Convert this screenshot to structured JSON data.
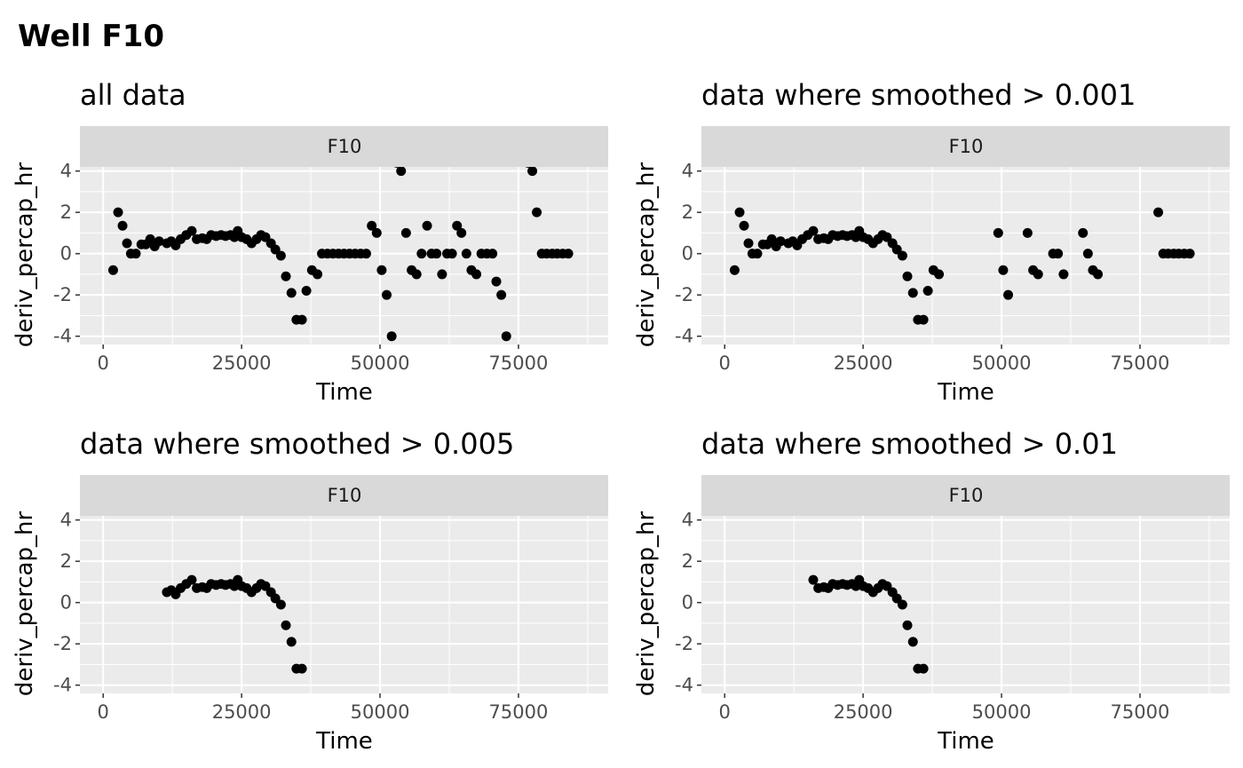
{
  "figure": {
    "title": "Well F10"
  },
  "colors": {
    "panel_bg": "#ebebeb",
    "strip_bg": "#d9d9d9",
    "grid": "#ffffff",
    "point": "#000000",
    "tick": "#333333"
  },
  "chart_data": [
    {
      "type": "scatter",
      "title": "all data",
      "facet": "F10",
      "xlabel": "Time",
      "ylabel": "deriv_percap_hr",
      "xlim": [
        -4200,
        91200
      ],
      "ylim": [
        -4.4,
        4.2
      ],
      "xticks": [
        0,
        25000,
        50000,
        75000
      ],
      "yticks": [
        -4,
        -2,
        0,
        2,
        4
      ],
      "points": [
        [
          1800,
          -0.8
        ],
        [
          2700,
          2
        ],
        [
          3500,
          1.35
        ],
        [
          4300,
          0.5
        ],
        [
          5000,
          0
        ],
        [
          5900,
          0
        ],
        [
          6900,
          0.45
        ],
        [
          7700,
          0.45
        ],
        [
          8500,
          0.7
        ],
        [
          9300,
          0.35
        ],
        [
          10100,
          0.6
        ],
        [
          11500,
          0.5
        ],
        [
          12300,
          0.6
        ],
        [
          13100,
          0.4
        ],
        [
          14000,
          0.7
        ],
        [
          15000,
          0.9
        ],
        [
          16000,
          1.1
        ],
        [
          16900,
          0.7
        ],
        [
          17900,
          0.75
        ],
        [
          18700,
          0.7
        ],
        [
          19500,
          0.9
        ],
        [
          20400,
          0.85
        ],
        [
          21300,
          0.9
        ],
        [
          22100,
          0.85
        ],
        [
          23000,
          0.9
        ],
        [
          23700,
          0.8
        ],
        [
          24300,
          1.1
        ],
        [
          25000,
          0.8
        ],
        [
          25900,
          0.7
        ],
        [
          26800,
          0.5
        ],
        [
          27700,
          0.7
        ],
        [
          28500,
          0.9
        ],
        [
          29300,
          0.8
        ],
        [
          30300,
          0.5
        ],
        [
          31100,
          0.2
        ],
        [
          32100,
          -0.1
        ],
        [
          33000,
          -1.1
        ],
        [
          34000,
          -1.9
        ],
        [
          34900,
          -3.2
        ],
        [
          35900,
          -3.2
        ],
        [
          36700,
          -1.8
        ],
        [
          37700,
          -0.8
        ],
        [
          38700,
          -1
        ],
        [
          39500,
          0
        ],
        [
          40500,
          0
        ],
        [
          41500,
          0
        ],
        [
          42500,
          0
        ],
        [
          43500,
          0
        ],
        [
          44500,
          0
        ],
        [
          45500,
          0
        ],
        [
          46500,
          0
        ],
        [
          47500,
          0
        ],
        [
          48500,
          1.35
        ],
        [
          49400,
          1
        ],
        [
          50300,
          -0.8
        ],
        [
          51200,
          -2
        ],
        [
          52100,
          -4
        ],
        [
          53000,
          4.4
        ],
        [
          53800,
          4
        ],
        [
          54700,
          1
        ],
        [
          55700,
          -0.8
        ],
        [
          56600,
          -1
        ],
        [
          57500,
          0
        ],
        [
          58500,
          1.35
        ],
        [
          59300,
          0
        ],
        [
          60200,
          0
        ],
        [
          61200,
          -1
        ],
        [
          62100,
          0
        ],
        [
          63000,
          0
        ],
        [
          63900,
          1.35
        ],
        [
          64700,
          1
        ],
        [
          65600,
          0
        ],
        [
          66500,
          -0.8
        ],
        [
          67400,
          -1
        ],
        [
          68300,
          0
        ],
        [
          69300,
          0
        ],
        [
          70300,
          0
        ],
        [
          71000,
          -1.35
        ],
        [
          71900,
          -2
        ],
        [
          72800,
          -4
        ],
        [
          76700,
          4.4
        ],
        [
          77500,
          4
        ],
        [
          78300,
          2
        ],
        [
          79200,
          0
        ],
        [
          80100,
          0
        ],
        [
          81100,
          0
        ],
        [
          82000,
          0
        ],
        [
          83000,
          0
        ],
        [
          84000,
          0
        ]
      ]
    },
    {
      "type": "scatter",
      "title": "data where smoothed > 0.001",
      "facet": "F10",
      "xlabel": "Time",
      "ylabel": "deriv_percap_hr",
      "xlim": [
        -4200,
        91200
      ],
      "ylim": [
        -4.4,
        4.2
      ],
      "xticks": [
        0,
        25000,
        50000,
        75000
      ],
      "yticks": [
        -4,
        -2,
        0,
        2,
        4
      ],
      "points": [
        [
          1800,
          -0.8
        ],
        [
          2700,
          2
        ],
        [
          3500,
          1.35
        ],
        [
          4300,
          0.5
        ],
        [
          5000,
          0
        ],
        [
          5900,
          0
        ],
        [
          6900,
          0.45
        ],
        [
          7700,
          0.45
        ],
        [
          8500,
          0.7
        ],
        [
          9300,
          0.35
        ],
        [
          10100,
          0.6
        ],
        [
          11500,
          0.5
        ],
        [
          12300,
          0.6
        ],
        [
          13100,
          0.4
        ],
        [
          14000,
          0.7
        ],
        [
          15000,
          0.9
        ],
        [
          16000,
          1.1
        ],
        [
          16900,
          0.7
        ],
        [
          17900,
          0.75
        ],
        [
          18700,
          0.7
        ],
        [
          19500,
          0.9
        ],
        [
          20400,
          0.85
        ],
        [
          21300,
          0.9
        ],
        [
          22100,
          0.85
        ],
        [
          23000,
          0.9
        ],
        [
          23700,
          0.8
        ],
        [
          24300,
          1.1
        ],
        [
          25000,
          0.8
        ],
        [
          25900,
          0.7
        ],
        [
          26800,
          0.5
        ],
        [
          27700,
          0.7
        ],
        [
          28500,
          0.9
        ],
        [
          29300,
          0.8
        ],
        [
          30300,
          0.5
        ],
        [
          31100,
          0.2
        ],
        [
          32100,
          -0.1
        ],
        [
          33000,
          -1.1
        ],
        [
          34000,
          -1.9
        ],
        [
          34900,
          -3.2
        ],
        [
          35900,
          -3.2
        ],
        [
          36700,
          -1.8
        ],
        [
          37700,
          -0.8
        ],
        [
          38700,
          -1
        ],
        [
          49400,
          1
        ],
        [
          50300,
          -0.8
        ],
        [
          51200,
          -2
        ],
        [
          54700,
          1
        ],
        [
          55700,
          -0.8
        ],
        [
          56600,
          -1
        ],
        [
          59300,
          0
        ],
        [
          60200,
          0
        ],
        [
          61200,
          -1
        ],
        [
          64700,
          1
        ],
        [
          65600,
          0
        ],
        [
          66500,
          -0.8
        ],
        [
          67400,
          -1
        ],
        [
          78300,
          2
        ],
        [
          79200,
          0
        ],
        [
          80100,
          0
        ],
        [
          81100,
          0
        ],
        [
          82000,
          0
        ],
        [
          83000,
          0
        ],
        [
          84000,
          0
        ]
      ]
    },
    {
      "type": "scatter",
      "title": "data where smoothed > 0.005",
      "facet": "F10",
      "xlabel": "Time",
      "ylabel": "deriv_percap_hr",
      "xlim": [
        -4200,
        91200
      ],
      "ylim": [
        -4.4,
        4.2
      ],
      "xticks": [
        0,
        25000,
        50000,
        75000
      ],
      "yticks": [
        -4,
        -2,
        0,
        2,
        4
      ],
      "points": [
        [
          11500,
          0.5
        ],
        [
          12300,
          0.6
        ],
        [
          13100,
          0.4
        ],
        [
          14000,
          0.7
        ],
        [
          15000,
          0.9
        ],
        [
          16000,
          1.1
        ],
        [
          16900,
          0.7
        ],
        [
          17900,
          0.75
        ],
        [
          18700,
          0.7
        ],
        [
          19500,
          0.9
        ],
        [
          20400,
          0.85
        ],
        [
          21300,
          0.9
        ],
        [
          22100,
          0.85
        ],
        [
          23000,
          0.9
        ],
        [
          23700,
          0.8
        ],
        [
          24300,
          1.1
        ],
        [
          25000,
          0.8
        ],
        [
          25900,
          0.7
        ],
        [
          26800,
          0.5
        ],
        [
          27700,
          0.7
        ],
        [
          28500,
          0.9
        ],
        [
          29300,
          0.8
        ],
        [
          30300,
          0.5
        ],
        [
          31100,
          0.2
        ],
        [
          32100,
          -0.1
        ],
        [
          33000,
          -1.1
        ],
        [
          34000,
          -1.9
        ],
        [
          34900,
          -3.2
        ],
        [
          35900,
          -3.2
        ]
      ]
    },
    {
      "type": "scatter",
      "title": "data where smoothed > 0.01",
      "facet": "F10",
      "xlabel": "Time",
      "ylabel": "deriv_percap_hr",
      "xlim": [
        -4200,
        91200
      ],
      "ylim": [
        -4.4,
        4.2
      ],
      "xticks": [
        0,
        25000,
        50000,
        75000
      ],
      "yticks": [
        -4,
        -2,
        0,
        2,
        4
      ],
      "points": [
        [
          16000,
          1.1
        ],
        [
          16900,
          0.7
        ],
        [
          17900,
          0.75
        ],
        [
          18700,
          0.7
        ],
        [
          19500,
          0.9
        ],
        [
          20400,
          0.85
        ],
        [
          21300,
          0.9
        ],
        [
          22100,
          0.85
        ],
        [
          23000,
          0.9
        ],
        [
          23700,
          0.8
        ],
        [
          24300,
          1.1
        ],
        [
          25000,
          0.8
        ],
        [
          25900,
          0.7
        ],
        [
          26800,
          0.5
        ],
        [
          27700,
          0.7
        ],
        [
          28500,
          0.9
        ],
        [
          29300,
          0.8
        ],
        [
          30300,
          0.5
        ],
        [
          31100,
          0.2
        ],
        [
          32100,
          -0.1
        ],
        [
          33000,
          -1.1
        ],
        [
          34000,
          -1.9
        ],
        [
          34900,
          -3.2
        ],
        [
          35900,
          -3.2
        ]
      ]
    }
  ]
}
